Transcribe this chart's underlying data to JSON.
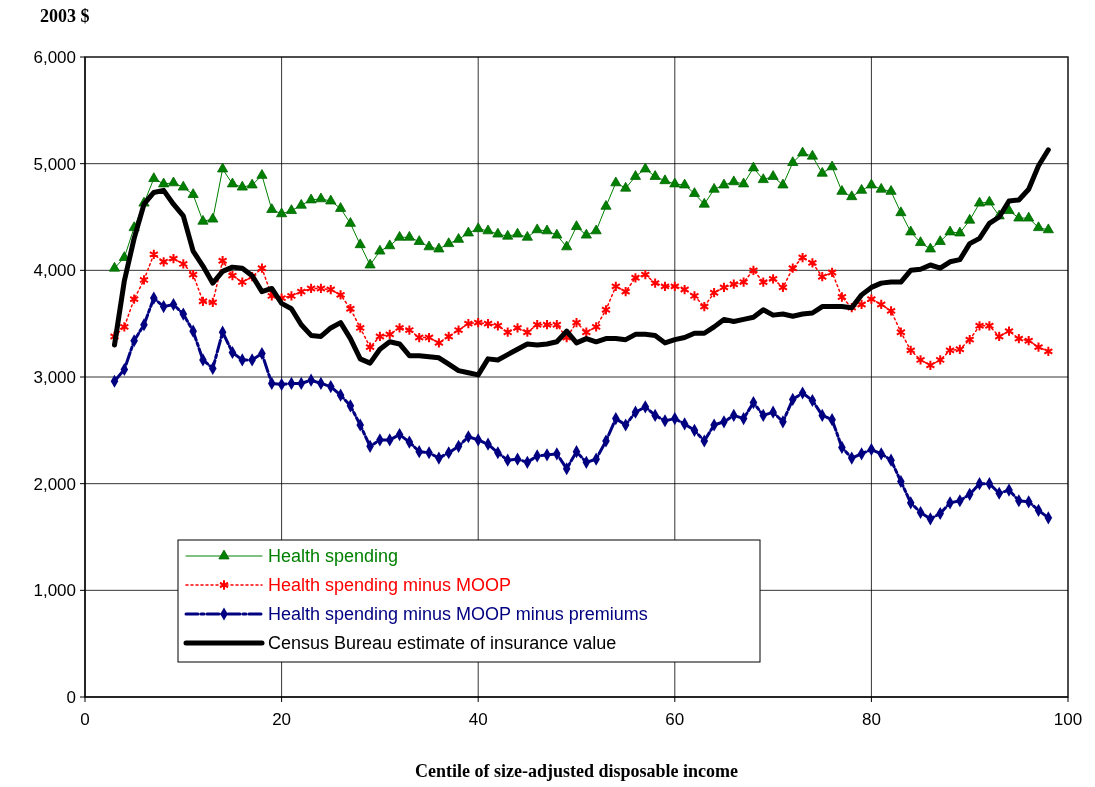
{
  "chart_data": {
    "type": "line",
    "ylabel": "2003 $",
    "xlabel": "Centile of size-adjusted disposable income",
    "xlim": [
      0,
      100
    ],
    "xticks": [
      0,
      20,
      40,
      60,
      80,
      100
    ],
    "ylim": [
      0,
      6000
    ],
    "yticks": [
      {
        "value": 0,
        "label": "0"
      },
      {
        "value": 1000,
        "label": "1,000"
      },
      {
        "value": 2000,
        "label": "2,000"
      },
      {
        "value": 3000,
        "label": "3,000"
      },
      {
        "value": 4000,
        "label": "4,000"
      },
      {
        "value": 5000,
        "label": "5,000"
      },
      {
        "value": 6000,
        "label": "6,000"
      }
    ],
    "grid": true,
    "legend": "bottom left",
    "x": [
      3,
      4,
      5,
      6,
      7,
      8,
      9,
      10,
      11,
      12,
      13,
      14,
      15,
      16,
      17,
      18,
      19,
      20,
      21,
      22,
      23,
      24,
      25,
      26,
      27,
      28,
      29,
      30,
      31,
      32,
      33,
      34,
      35,
      36,
      37,
      38,
      39,
      40,
      41,
      42,
      43,
      44,
      45,
      46,
      47,
      48,
      49,
      50,
      51,
      52,
      53,
      54,
      55,
      56,
      57,
      58,
      59,
      60,
      61,
      62,
      63,
      64,
      65,
      66,
      67,
      68,
      69,
      70,
      71,
      72,
      73,
      74,
      75,
      76,
      77,
      78,
      79,
      80,
      81,
      82,
      83,
      84,
      85,
      86,
      87,
      88,
      89,
      90,
      91,
      92,
      93,
      94,
      95,
      96,
      97,
      98
    ],
    "series": [
      {
        "name": "Health spending",
        "color": "#008000",
        "marker": "triangle",
        "line_style": "solid",
        "values": [
          4020,
          4120,
          4400,
          4630,
          4860,
          4810,
          4820,
          4780,
          4710,
          4460,
          4480,
          4950,
          4810,
          4780,
          4800,
          4890,
          4570,
          4530,
          4560,
          4610,
          4660,
          4670,
          4650,
          4580,
          4440,
          4240,
          4050,
          4180,
          4230,
          4310,
          4310,
          4270,
          4220,
          4200,
          4250,
          4290,
          4350,
          4390,
          4370,
          4340,
          4320,
          4340,
          4310,
          4380,
          4370,
          4330,
          4220,
          4410,
          4330,
          4370,
          4600,
          4820,
          4770,
          4880,
          4950,
          4880,
          4840,
          4810,
          4800,
          4720,
          4620,
          4760,
          4800,
          4830,
          4810,
          4960,
          4850,
          4880,
          4800,
          5010,
          5100,
          5070,
          4910,
          4970,
          4740,
          4690,
          4750,
          4800,
          4760,
          4740,
          4540,
          4360,
          4260,
          4200,
          4270,
          4360,
          4350,
          4470,
          4630,
          4640,
          4510,
          4560,
          4490,
          4490,
          4400,
          4380
        ]
      },
      {
        "name": "Health spending minus MOOP",
        "color": "#ff0000",
        "marker": "cross",
        "line_style": "dotted",
        "values": [
          3380,
          3470,
          3730,
          3910,
          4150,
          4080,
          4110,
          4060,
          3960,
          3710,
          3700,
          4090,
          3950,
          3890,
          3940,
          4020,
          3760,
          3740,
          3760,
          3800,
          3830,
          3830,
          3820,
          3770,
          3640,
          3460,
          3280,
          3380,
          3400,
          3460,
          3440,
          3370,
          3370,
          3320,
          3380,
          3440,
          3500,
          3510,
          3500,
          3480,
          3420,
          3460,
          3420,
          3490,
          3490,
          3490,
          3370,
          3510,
          3420,
          3470,
          3630,
          3850,
          3800,
          3930,
          3960,
          3880,
          3850,
          3850,
          3820,
          3760,
          3660,
          3790,
          3840,
          3870,
          3890,
          4000,
          3890,
          3920,
          3840,
          4020,
          4120,
          4070,
          3940,
          3980,
          3750,
          3650,
          3680,
          3730,
          3680,
          3620,
          3420,
          3250,
          3160,
          3110,
          3160,
          3250,
          3260,
          3350,
          3480,
          3480,
          3380,
          3430,
          3360,
          3340,
          3280,
          3240
        ]
      },
      {
        "name": "Health spending minus MOOP minus premiums",
        "color": "#000080",
        "marker": "diamond",
        "line_style": "dashed",
        "values": [
          2960,
          3070,
          3340,
          3490,
          3740,
          3660,
          3680,
          3590,
          3430,
          3160,
          3080,
          3420,
          3230,
          3160,
          3160,
          3220,
          2940,
          2930,
          2940,
          2940,
          2970,
          2940,
          2910,
          2830,
          2730,
          2550,
          2350,
          2410,
          2410,
          2460,
          2390,
          2300,
          2290,
          2240,
          2290,
          2350,
          2440,
          2410,
          2370,
          2290,
          2220,
          2230,
          2200,
          2260,
          2270,
          2280,
          2140,
          2300,
          2200,
          2230,
          2400,
          2610,
          2550,
          2670,
          2720,
          2640,
          2590,
          2610,
          2560,
          2500,
          2400,
          2550,
          2580,
          2640,
          2610,
          2760,
          2640,
          2670,
          2580,
          2790,
          2850,
          2780,
          2640,
          2600,
          2340,
          2240,
          2280,
          2320,
          2280,
          2220,
          2020,
          1820,
          1730,
          1670,
          1720,
          1820,
          1840,
          1900,
          2000,
          2000,
          1910,
          1940,
          1840,
          1830,
          1750,
          1680
        ]
      },
      {
        "name": "Census Bureau estimate of insurance value",
        "color": "#000000",
        "marker": "none",
        "line_style": "solid",
        "values": [
          3300,
          3900,
          4300,
          4620,
          4730,
          4750,
          4620,
          4510,
          4180,
          4040,
          3880,
          3990,
          4030,
          4020,
          3950,
          3800,
          3830,
          3690,
          3640,
          3490,
          3390,
          3380,
          3460,
          3510,
          3360,
          3170,
          3130,
          3260,
          3330,
          3310,
          3200,
          3200,
          3190,
          3180,
          3120,
          3060,
          3040,
          3020,
          3170,
          3160,
          3210,
          3260,
          3310,
          3300,
          3310,
          3330,
          3430,
          3320,
          3360,
          3330,
          3360,
          3360,
          3350,
          3400,
          3400,
          3390,
          3320,
          3350,
          3370,
          3410,
          3410,
          3470,
          3540,
          3520,
          3540,
          3560,
          3630,
          3580,
          3590,
          3570,
          3590,
          3600,
          3660,
          3660,
          3660,
          3650,
          3770,
          3840,
          3880,
          3890,
          3890,
          4000,
          4010,
          4050,
          4020,
          4080,
          4100,
          4250,
          4300,
          4440,
          4500,
          4650,
          4660,
          4760,
          4980,
          5130
        ]
      }
    ]
  }
}
